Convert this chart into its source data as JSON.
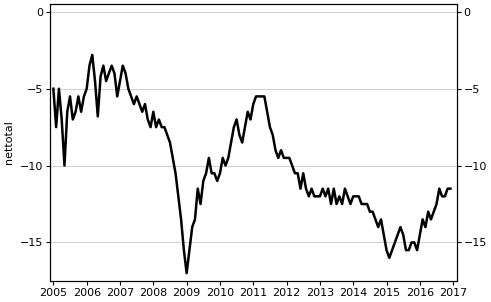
{
  "title": "",
  "ylabel_left": "nettotal",
  "ylim": [
    -17.5,
    0.5
  ],
  "xlim": [
    2004.9,
    2017.1
  ],
  "yticks": [
    0,
    -5,
    -10,
    -15
  ],
  "xticks": [
    2005,
    2006,
    2007,
    2008,
    2009,
    2010,
    2011,
    2012,
    2013,
    2014,
    2015,
    2016,
    2017
  ],
  "line_color": "#000000",
  "line_width": 1.8,
  "background_color": "#ffffff",
  "grid_color": "#c8c8c8",
  "data": {
    "t": [
      2005.0,
      2005.083,
      2005.167,
      2005.25,
      2005.333,
      2005.417,
      2005.5,
      2005.583,
      2005.667,
      2005.75,
      2005.833,
      2005.917,
      2006.0,
      2006.083,
      2006.167,
      2006.25,
      2006.333,
      2006.417,
      2006.5,
      2006.583,
      2006.667,
      2006.75,
      2006.833,
      2006.917,
      2007.0,
      2007.083,
      2007.167,
      2007.25,
      2007.333,
      2007.417,
      2007.5,
      2007.583,
      2007.667,
      2007.75,
      2007.833,
      2007.917,
      2008.0,
      2008.083,
      2008.167,
      2008.25,
      2008.333,
      2008.417,
      2008.5,
      2008.583,
      2008.667,
      2008.75,
      2008.833,
      2008.917,
      2009.0,
      2009.083,
      2009.167,
      2009.25,
      2009.333,
      2009.417,
      2009.5,
      2009.583,
      2009.667,
      2009.75,
      2009.833,
      2009.917,
      2010.0,
      2010.083,
      2010.167,
      2010.25,
      2010.333,
      2010.417,
      2010.5,
      2010.583,
      2010.667,
      2010.75,
      2010.833,
      2010.917,
      2011.0,
      2011.083,
      2011.167,
      2011.25,
      2011.333,
      2011.417,
      2011.5,
      2011.583,
      2011.667,
      2011.75,
      2011.833,
      2011.917,
      2012.0,
      2012.083,
      2012.167,
      2012.25,
      2012.333,
      2012.417,
      2012.5,
      2012.583,
      2012.667,
      2012.75,
      2012.833,
      2012.917,
      2013.0,
      2013.083,
      2013.167,
      2013.25,
      2013.333,
      2013.417,
      2013.5,
      2013.583,
      2013.667,
      2013.75,
      2013.833,
      2013.917,
      2014.0,
      2014.083,
      2014.167,
      2014.25,
      2014.333,
      2014.417,
      2014.5,
      2014.583,
      2014.667,
      2014.75,
      2014.833,
      2014.917,
      2015.0,
      2015.083,
      2015.167,
      2015.25,
      2015.333,
      2015.417,
      2015.5,
      2015.583,
      2015.667,
      2015.75,
      2015.833,
      2015.917,
      2016.0,
      2016.083,
      2016.167,
      2016.25,
      2016.333,
      2016.417,
      2016.5,
      2016.583,
      2016.667,
      2016.75,
      2016.833,
      2016.917
    ],
    "y": [
      -5.0,
      -7.5,
      -5.0,
      -7.0,
      -10.0,
      -6.5,
      -5.5,
      -7.0,
      -6.5,
      -5.5,
      -6.5,
      -5.5,
      -5.0,
      -3.5,
      -2.8,
      -4.5,
      -6.8,
      -4.2,
      -3.5,
      -4.5,
      -4.0,
      -3.5,
      -4.0,
      -5.5,
      -4.5,
      -3.5,
      -4.0,
      -5.0,
      -5.5,
      -6.0,
      -5.5,
      -6.0,
      -6.5,
      -6.0,
      -7.0,
      -7.5,
      -6.5,
      -7.5,
      -7.0,
      -7.5,
      -7.5,
      -8.0,
      -8.5,
      -9.5,
      -10.5,
      -12.0,
      -13.5,
      -15.5,
      -17.0,
      -15.5,
      -14.0,
      -13.5,
      -11.5,
      -12.5,
      -11.0,
      -10.5,
      -9.5,
      -10.5,
      -10.5,
      -11.0,
      -10.5,
      -9.5,
      -10.0,
      -9.5,
      -8.5,
      -7.5,
      -7.0,
      -8.0,
      -8.5,
      -7.5,
      -6.5,
      -7.0,
      -6.0,
      -5.5,
      -5.5,
      -5.5,
      -5.5,
      -6.5,
      -7.5,
      -8.0,
      -9.0,
      -9.5,
      -9.0,
      -9.5,
      -9.5,
      -9.5,
      -10.0,
      -10.5,
      -10.5,
      -11.5,
      -10.5,
      -11.5,
      -12.0,
      -11.5,
      -12.0,
      -12.0,
      -12.0,
      -11.5,
      -12.0,
      -11.5,
      -12.5,
      -11.5,
      -12.5,
      -12.0,
      -12.5,
      -11.5,
      -12.0,
      -12.5,
      -12.0,
      -12.0,
      -12.0,
      -12.5,
      -12.5,
      -12.5,
      -13.0,
      -13.0,
      -13.5,
      -14.0,
      -13.5,
      -14.5,
      -15.5,
      -16.0,
      -15.5,
      -15.0,
      -14.5,
      -14.0,
      -14.5,
      -15.5,
      -15.5,
      -15.0,
      -15.0,
      -15.5,
      -14.5,
      -13.5,
      -14.0,
      -13.0,
      -13.5,
      -13.0,
      -12.5,
      -11.5,
      -12.0,
      -12.0,
      -11.5,
      -11.5
    ]
  }
}
